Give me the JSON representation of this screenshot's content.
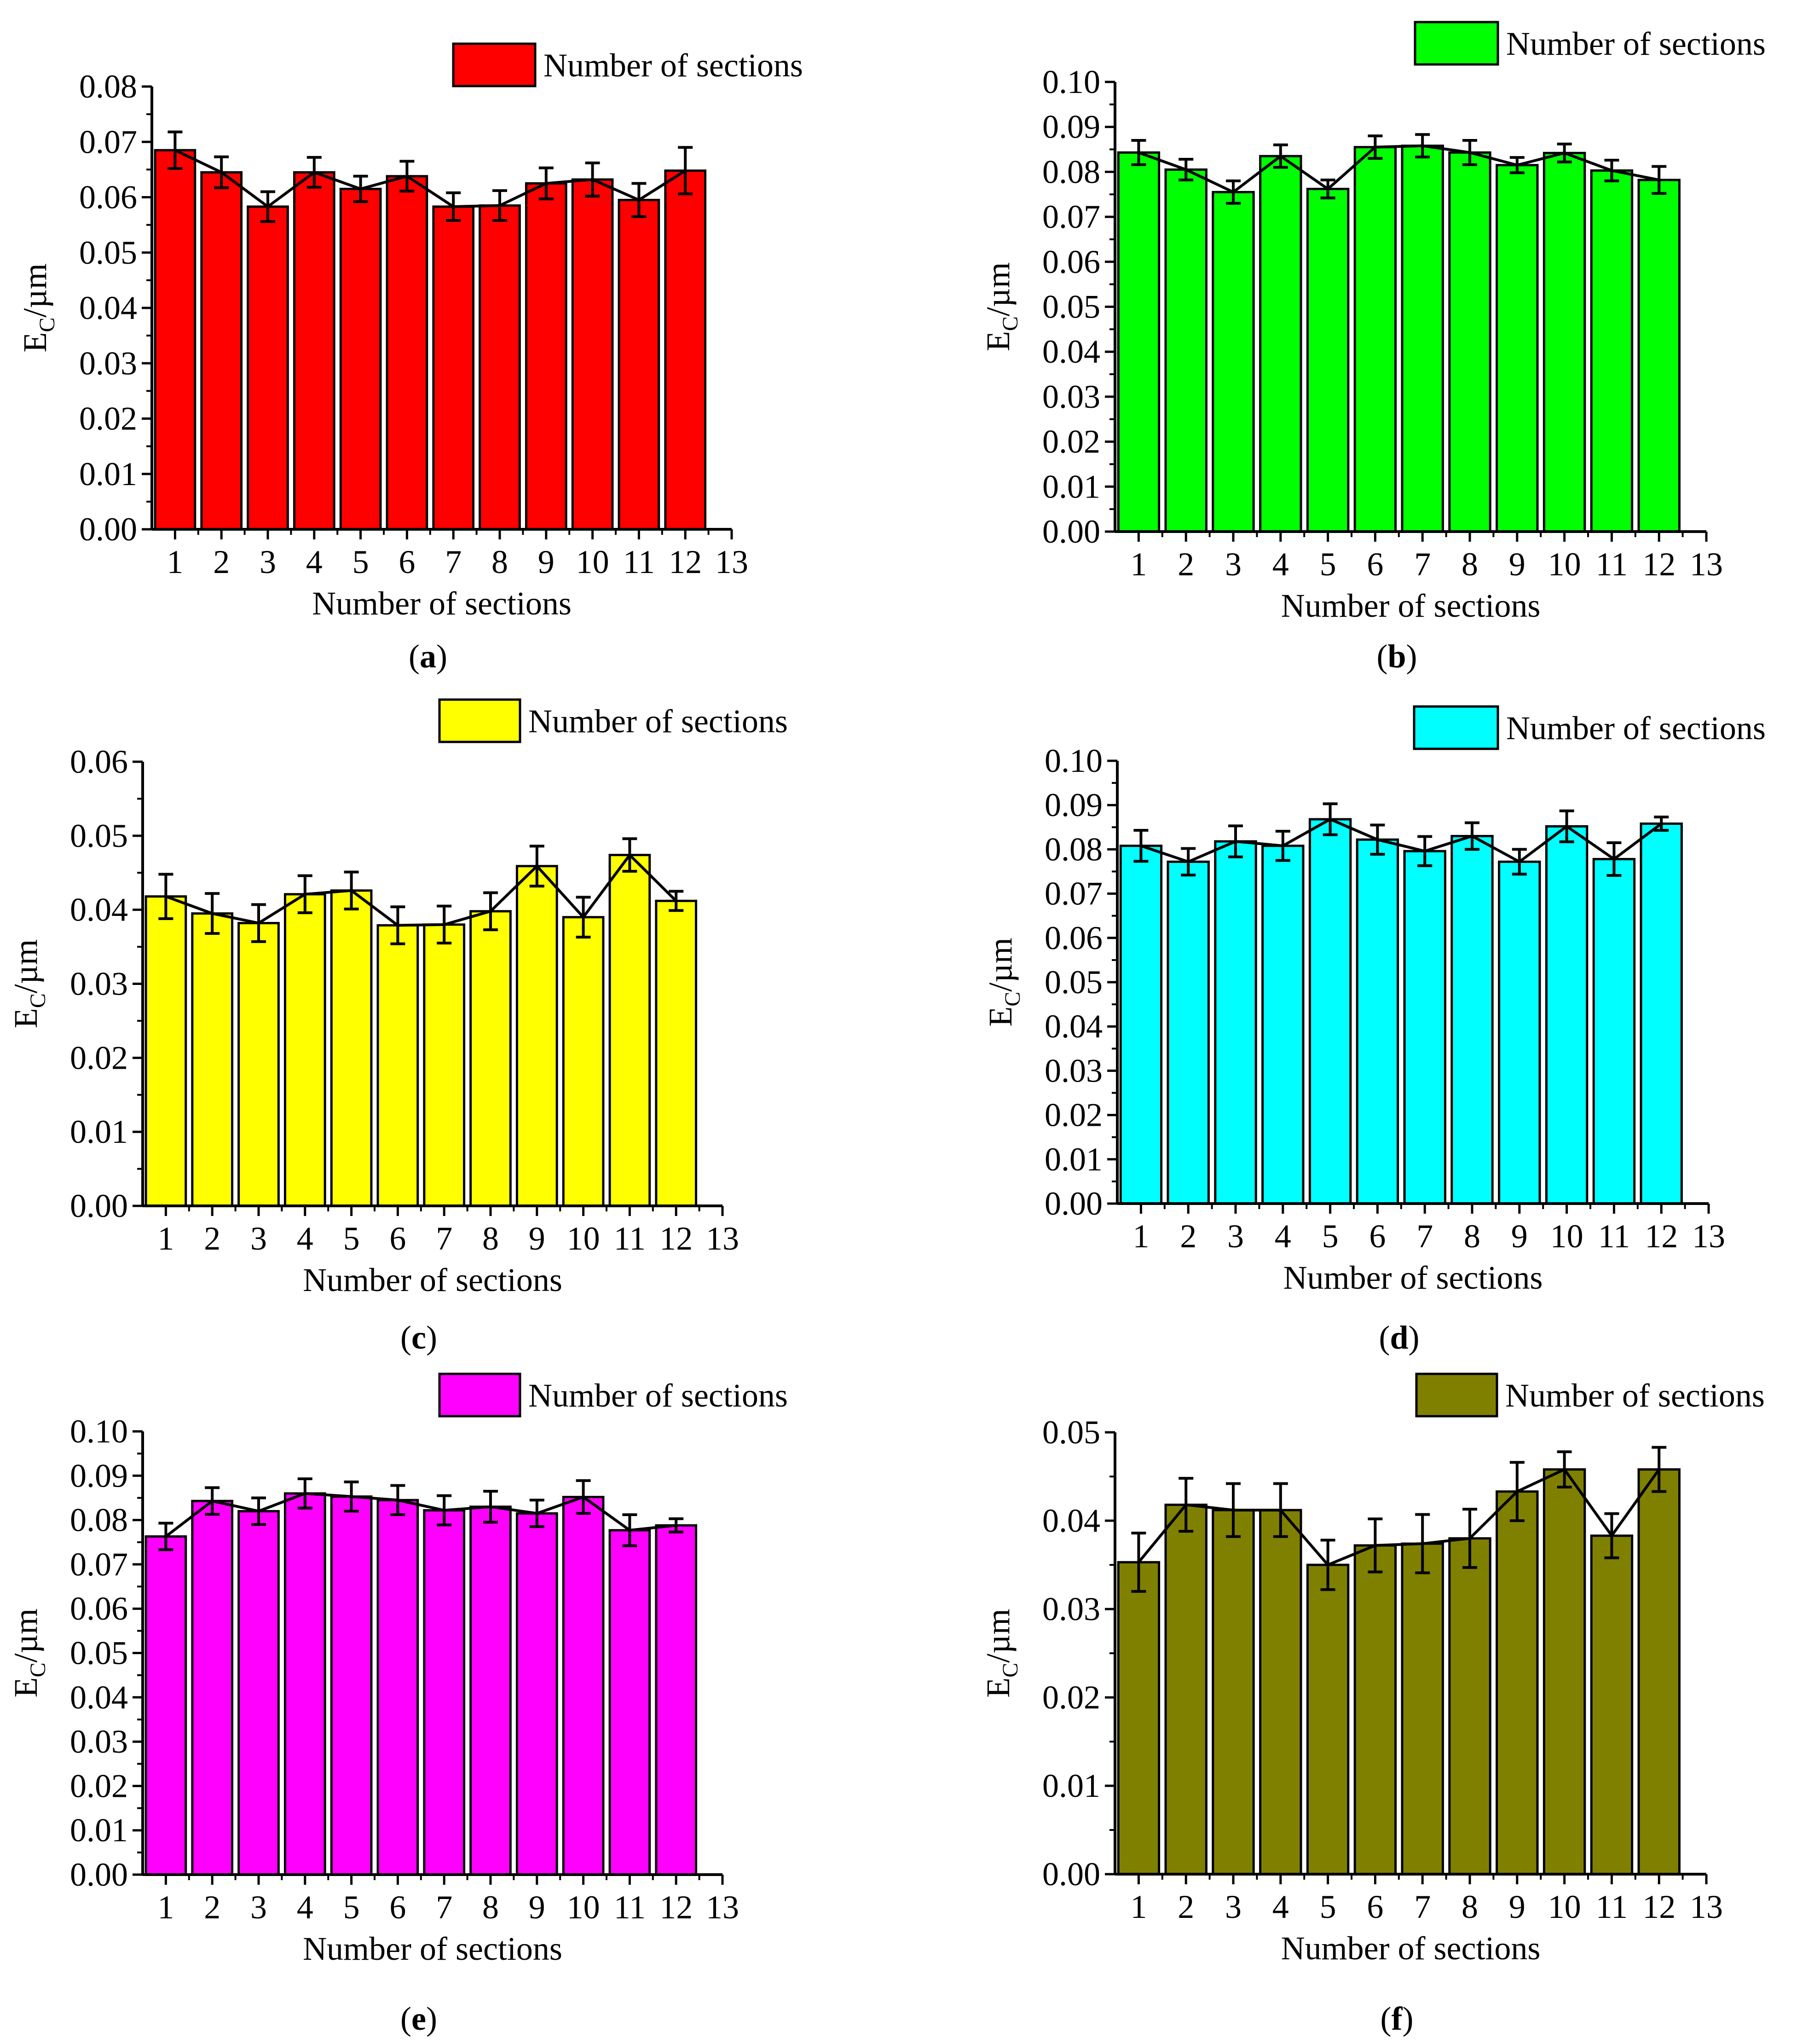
{
  "chart_data": [
    {
      "type": "bar",
      "panel_label": "a",
      "color": "#ff0000",
      "legend": "Number of sections",
      "legend_position": "top-right",
      "xlabel": "Number of sections",
      "ylabel": "E",
      "ylabel_sub": "C",
      "ylabel_unit": "/µm",
      "categories": [
        1,
        2,
        3,
        4,
        5,
        6,
        7,
        8,
        9,
        10,
        11,
        12
      ],
      "x_ticks": [
        "1",
        "2",
        "3",
        "4",
        "5",
        "6",
        "7",
        "8",
        "9",
        "10",
        "11",
        "12",
        "13"
      ],
      "xlim": [
        0.5,
        13
      ],
      "ylim": [
        0,
        0.08
      ],
      "yticks": [
        "0.00",
        "0.01",
        "0.02",
        "0.03",
        "0.04",
        "0.05",
        "0.06",
        "0.07",
        "0.08"
      ],
      "values": [
        0.0685,
        0.0645,
        0.0583,
        0.0645,
        0.0615,
        0.0638,
        0.0583,
        0.0585,
        0.0625,
        0.0632,
        0.0595,
        0.0648
      ],
      "errors": [
        0.0033,
        0.0028,
        0.0027,
        0.0027,
        0.0023,
        0.0027,
        0.0025,
        0.0027,
        0.0028,
        0.003,
        0.003,
        0.0042
      ]
    },
    {
      "type": "bar",
      "panel_label": "b",
      "color": "#00ff00",
      "legend": "Number of sections",
      "legend_position": "top-right",
      "xlabel": "Number of sections",
      "ylabel": "E",
      "ylabel_sub": "C",
      "ylabel_unit": "/µm",
      "categories": [
        1,
        2,
        3,
        4,
        5,
        6,
        7,
        8,
        9,
        10,
        11,
        12
      ],
      "x_ticks": [
        "1",
        "2",
        "3",
        "4",
        "5",
        "6",
        "7",
        "8",
        "9",
        "10",
        "11",
        "12",
        "13"
      ],
      "xlim": [
        0.5,
        13
      ],
      "ylim": [
        0,
        0.1
      ],
      "yticks": [
        "0.00",
        "0.01",
        "0.02",
        "0.03",
        "0.04",
        "0.05",
        "0.06",
        "0.07",
        "0.08",
        "0.09",
        "0.10"
      ],
      "values": [
        0.0843,
        0.0805,
        0.0755,
        0.0835,
        0.0762,
        0.0855,
        0.0858,
        0.0843,
        0.0815,
        0.0842,
        0.0803,
        0.0782
      ],
      "errors": [
        0.0027,
        0.0023,
        0.0025,
        0.0025,
        0.002,
        0.0025,
        0.0025,
        0.0027,
        0.0017,
        0.002,
        0.0023,
        0.003
      ]
    },
    {
      "type": "bar",
      "panel_label": "c",
      "color": "#ffff00",
      "legend": "Number of sections",
      "legend_position": "top-right",
      "xlabel": "Number of sections",
      "ylabel": "E",
      "ylabel_sub": "C",
      "ylabel_unit": "/µm",
      "categories": [
        1,
        2,
        3,
        4,
        5,
        6,
        7,
        8,
        9,
        10,
        11,
        12
      ],
      "x_ticks": [
        "1",
        "2",
        "3",
        "4",
        "5",
        "6",
        "7",
        "8",
        "9",
        "10",
        "11",
        "12",
        "13"
      ],
      "xlim": [
        0.5,
        13
      ],
      "ylim": [
        0,
        0.06
      ],
      "yticks": [
        "0.00",
        "0.01",
        "0.02",
        "0.03",
        "0.04",
        "0.05",
        "0.06"
      ],
      "values": [
        0.0418,
        0.0395,
        0.0382,
        0.0421,
        0.0426,
        0.0379,
        0.038,
        0.0398,
        0.0459,
        0.039,
        0.0474,
        0.0412
      ],
      "errors": [
        0.003,
        0.0027,
        0.0025,
        0.0025,
        0.0025,
        0.0025,
        0.0025,
        0.0025,
        0.0027,
        0.0027,
        0.0022,
        0.0013
      ]
    },
    {
      "type": "bar",
      "panel_label": "d",
      "color": "#00ffff",
      "legend": "Number of sections",
      "legend_position": "top-right",
      "xlabel": "Number of sections",
      "ylabel": "E",
      "ylabel_sub": "C",
      "ylabel_unit": "/µm",
      "categories": [
        1,
        2,
        3,
        4,
        5,
        6,
        7,
        8,
        9,
        10,
        11,
        12
      ],
      "x_ticks": [
        "1",
        "2",
        "3",
        "4",
        "5",
        "6",
        "7",
        "8",
        "9",
        "10",
        "11",
        "12",
        "13"
      ],
      "xlim": [
        0.5,
        13
      ],
      "ylim": [
        0,
        0.1
      ],
      "yticks": [
        "0.00",
        "0.01",
        "0.02",
        "0.03",
        "0.04",
        "0.05",
        "0.06",
        "0.07",
        "0.08",
        "0.09",
        "0.10"
      ],
      "values": [
        0.0808,
        0.0772,
        0.0818,
        0.0808,
        0.0868,
        0.0822,
        0.0796,
        0.083,
        0.0772,
        0.0852,
        0.0778,
        0.0858
      ],
      "errors": [
        0.0035,
        0.003,
        0.0035,
        0.0033,
        0.0035,
        0.0033,
        0.0033,
        0.003,
        0.0028,
        0.0035,
        0.0037,
        0.0015
      ]
    },
    {
      "type": "bar",
      "panel_label": "e",
      "color": "#ff00ff",
      "legend": "Number of sections",
      "legend_position": "top-right",
      "xlabel": "Number of sections",
      "ylabel": "E",
      "ylabel_sub": "C",
      "ylabel_unit": "/µm",
      "categories": [
        1,
        2,
        3,
        4,
        5,
        6,
        7,
        8,
        9,
        10,
        11,
        12
      ],
      "x_ticks": [
        "1",
        "2",
        "3",
        "4",
        "5",
        "6",
        "7",
        "8",
        "9",
        "10",
        "11",
        "12",
        "13"
      ],
      "xlim": [
        0.5,
        13
      ],
      "ylim": [
        0,
        0.1
      ],
      "yticks": [
        "0.00",
        "0.01",
        "0.02",
        "0.03",
        "0.04",
        "0.05",
        "0.06",
        "0.07",
        "0.08",
        "0.09",
        "0.10"
      ],
      "values": [
        0.0763,
        0.0843,
        0.082,
        0.086,
        0.0853,
        0.0845,
        0.0822,
        0.083,
        0.0815,
        0.0852,
        0.0777,
        0.0788
      ],
      "errors": [
        0.003,
        0.003,
        0.003,
        0.0033,
        0.0033,
        0.0033,
        0.0033,
        0.0035,
        0.003,
        0.0037,
        0.0035,
        0.0015
      ]
    },
    {
      "type": "bar",
      "panel_label": "f",
      "color": "#808000",
      "legend": "Number of sections",
      "legend_position": "top-right",
      "xlabel": "Number of sections",
      "ylabel": "E",
      "ylabel_sub": "C",
      "ylabel_unit": "/µm",
      "categories": [
        1,
        2,
        3,
        4,
        5,
        6,
        7,
        8,
        9,
        10,
        11,
        12
      ],
      "x_ticks": [
        "1",
        "2",
        "3",
        "4",
        "5",
        "6",
        "7",
        "8",
        "9",
        "10",
        "11",
        "12",
        "13"
      ],
      "xlim": [
        0.5,
        13
      ],
      "ylim": [
        0,
        0.05
      ],
      "yticks": [
        "0.00",
        "0.01",
        "0.02",
        "0.03",
        "0.04",
        "0.05"
      ],
      "values": [
        0.0353,
        0.0418,
        0.0412,
        0.0412,
        0.035,
        0.0372,
        0.0374,
        0.038,
        0.0433,
        0.0458,
        0.0383,
        0.0458
      ],
      "errors": [
        0.0033,
        0.003,
        0.003,
        0.003,
        0.0028,
        0.003,
        0.0033,
        0.0033,
        0.0033,
        0.002,
        0.0025,
        0.0025
      ]
    }
  ]
}
